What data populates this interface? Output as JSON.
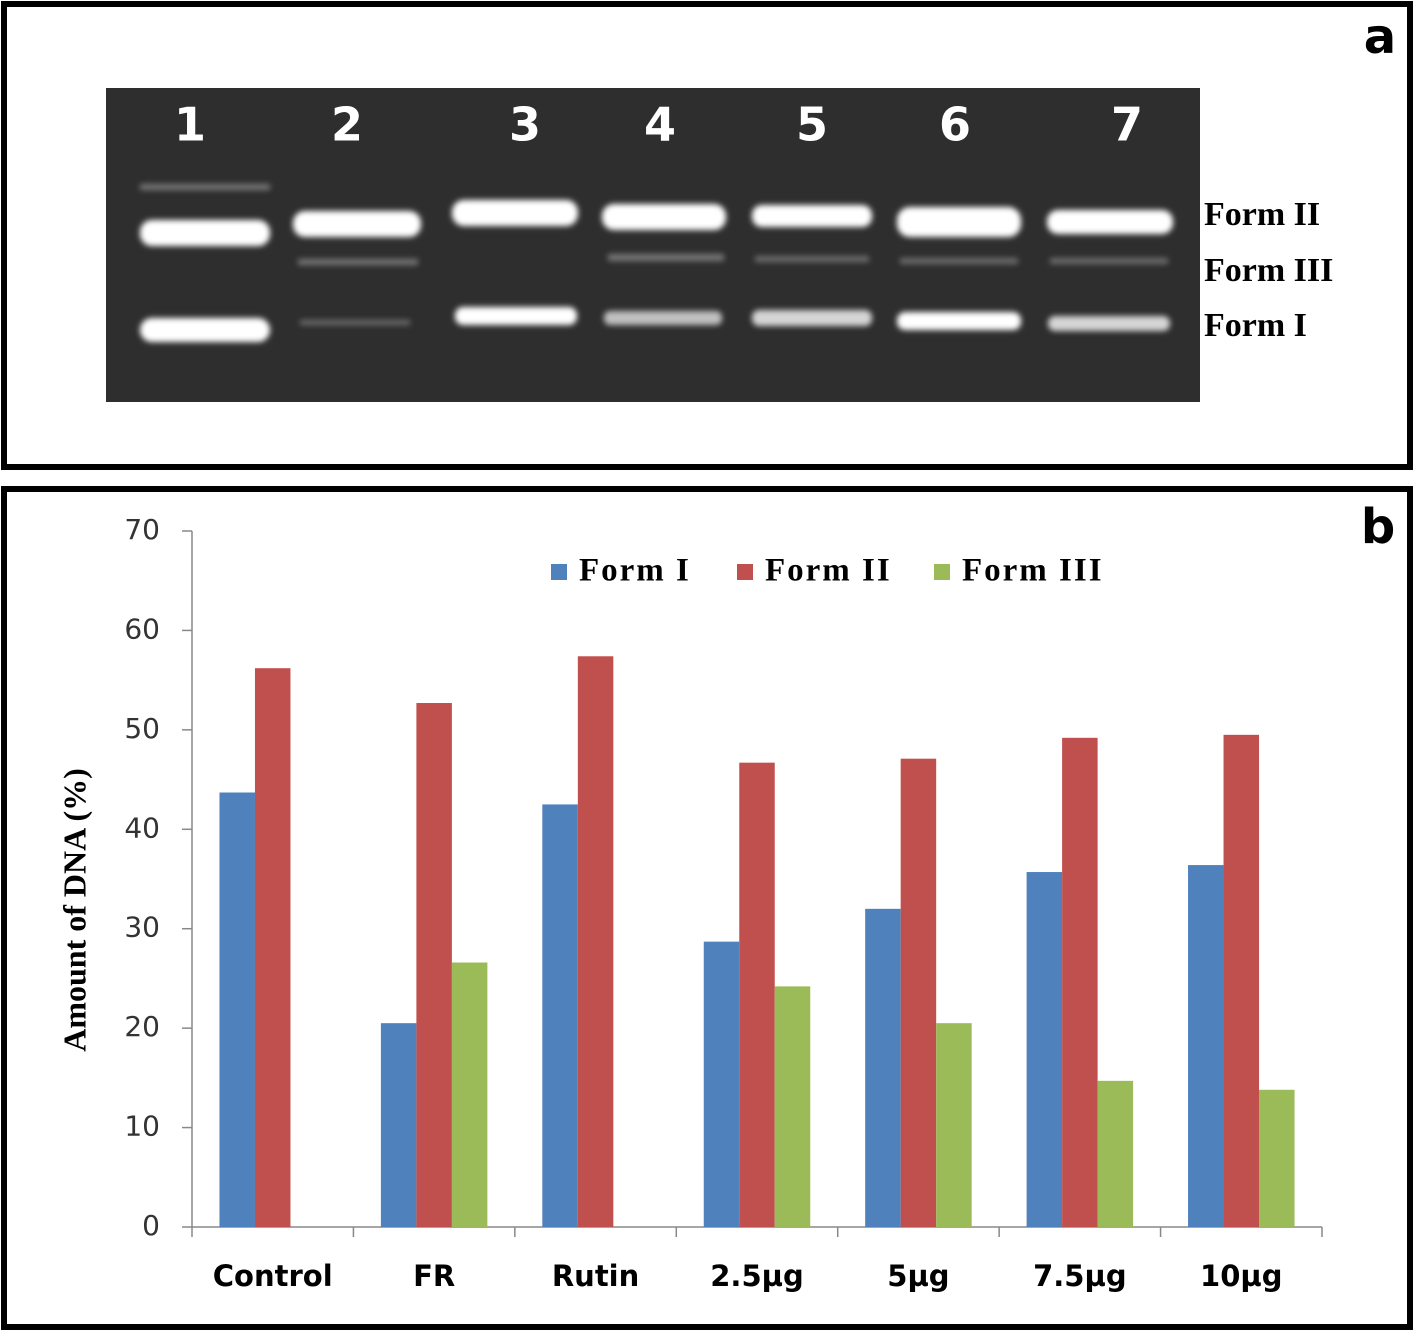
{
  "panel_a": {
    "label": "a",
    "lanes": [
      "1",
      "2",
      "3",
      "4",
      "5",
      "6",
      "7"
    ],
    "forms": [
      "Form II",
      "Form III",
      "Form I"
    ]
  },
  "chart_data": {
    "type": "bar",
    "panel_label": "b",
    "y_label": "Amount of DNA (%)",
    "categories": [
      "Control",
      "FR",
      "Rutin",
      "2.5µg",
      "5µg",
      "7.5µg",
      "10µg"
    ],
    "series": [
      {
        "name": "Form I",
        "color": "#4f81bd",
        "values": [
          43.7,
          20.5,
          42.5,
          28.7,
          32.0,
          35.7,
          36.4
        ]
      },
      {
        "name": "Form II",
        "color": "#c0504d",
        "values": [
          56.2,
          52.7,
          57.4,
          46.7,
          47.1,
          49.2,
          49.5
        ]
      },
      {
        "name": "Form III",
        "color": "#9bbb59",
        "values": [
          null,
          26.6,
          null,
          24.2,
          20.5,
          14.7,
          13.8
        ]
      }
    ],
    "ylim": [
      0,
      70
    ],
    "yticks": [
      0,
      10,
      20,
      30,
      40,
      50,
      60,
      70
    ],
    "grid": false,
    "legend": "top"
  }
}
